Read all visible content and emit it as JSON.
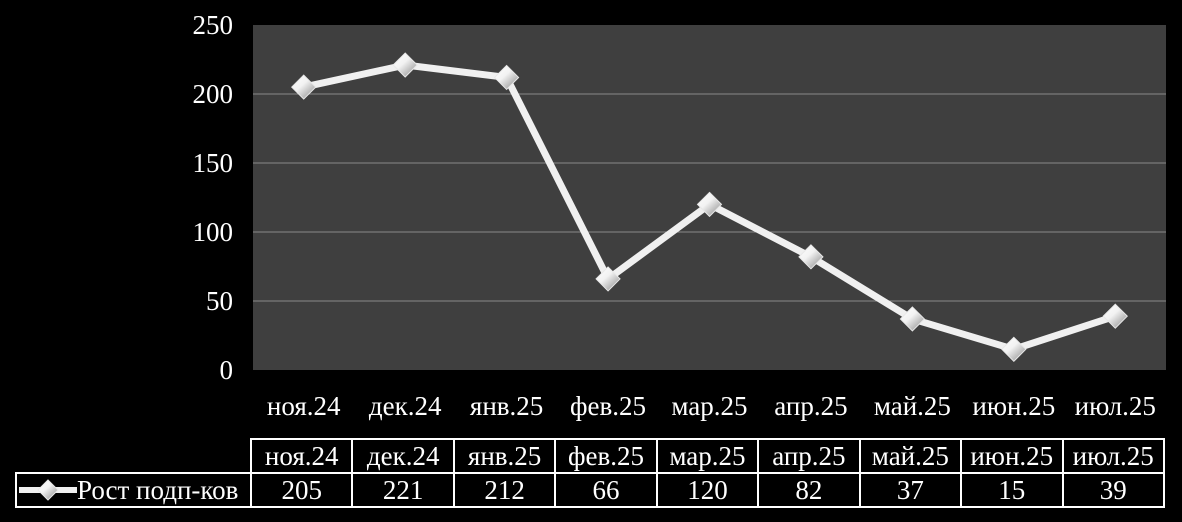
{
  "colors": {
    "background": "#000000",
    "plot_background": "#3F3F3F",
    "gridline": "#8A8A8A",
    "series_line": "#F0F0F0",
    "marker_light": "#FFFFFF",
    "marker_dark": "#8C8C8C",
    "text": "#FFFFFF",
    "table_border": "#FFFFFF"
  },
  "legend": {
    "label": "Рост подп-ков"
  },
  "chart_data": {
    "type": "line",
    "title": "",
    "xlabel": "",
    "ylabel": "",
    "categories": [
      "ноя.24",
      "дек.24",
      "янв.25",
      "фев.25",
      "мар.25",
      "апр.25",
      "май.25",
      "июн.25",
      "июл.25"
    ],
    "series": [
      {
        "name": "Рост подп-ков",
        "values": [
          205,
          221,
          212,
          66,
          120,
          82,
          37,
          15,
          39
        ]
      }
    ],
    "ylim": [
      0,
      250
    ],
    "yticks": [
      0,
      50,
      100,
      150,
      200,
      250
    ],
    "grid": true,
    "marker": "diamond-3d",
    "legend_position": "bottom-left",
    "data_table_shown": true
  }
}
